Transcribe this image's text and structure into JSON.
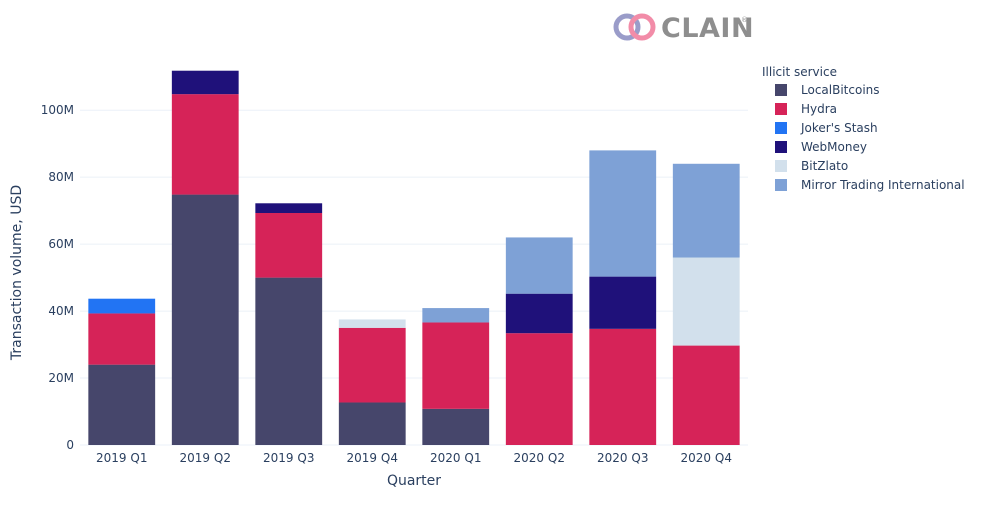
{
  "logo": {
    "text": "CLAIN",
    "registered": "®"
  },
  "chart_data": {
    "type": "bar",
    "stacked": true,
    "title": "",
    "xlabel": "Quarter",
    "ylabel": "Transaction volume, USD",
    "ylim": [
      0,
      115000000
    ],
    "yticks": [
      0,
      20000000,
      40000000,
      60000000,
      80000000,
      100000000
    ],
    "ytick_labels": [
      "0",
      "20M",
      "40M",
      "60M",
      "80M",
      "100M"
    ],
    "grid": true,
    "legend_title": "Illicit service",
    "legend_position": "top-right",
    "categories": [
      "2019 Q1",
      "2019 Q2",
      "2019 Q3",
      "2019 Q4",
      "2020 Q1",
      "2020 Q2",
      "2020 Q3",
      "2020 Q4"
    ],
    "series": [
      {
        "name": "LocalBitcoins",
        "color": "#46466b",
        "values": [
          24000000,
          74800000,
          50000000,
          12700000,
          10800000,
          0,
          0,
          0
        ]
      },
      {
        "name": "Hydra",
        "color": "#d62358",
        "values": [
          15300000,
          30000000,
          19300000,
          22300000,
          25800000,
          33400000,
          34700000,
          29700000
        ]
      },
      {
        "name": "Joker's Stash",
        "color": "#2274f3",
        "values": [
          4400000,
          0,
          0,
          0,
          0,
          0,
          0,
          0
        ]
      },
      {
        "name": "WebMoney",
        "color": "#1f117a",
        "values": [
          0,
          7000000,
          2900000,
          0,
          0,
          11800000,
          15600000,
          0
        ]
      },
      {
        "name": "BitZlato",
        "color": "#d2e0ec",
        "values": [
          0,
          0,
          0,
          2500000,
          0,
          0,
          0,
          26300000
        ]
      },
      {
        "name": "Mirror Trading International",
        "color": "#7ea1d6",
        "values": [
          0,
          0,
          0,
          0,
          4300000,
          16800000,
          37700000,
          28000000
        ]
      }
    ]
  }
}
